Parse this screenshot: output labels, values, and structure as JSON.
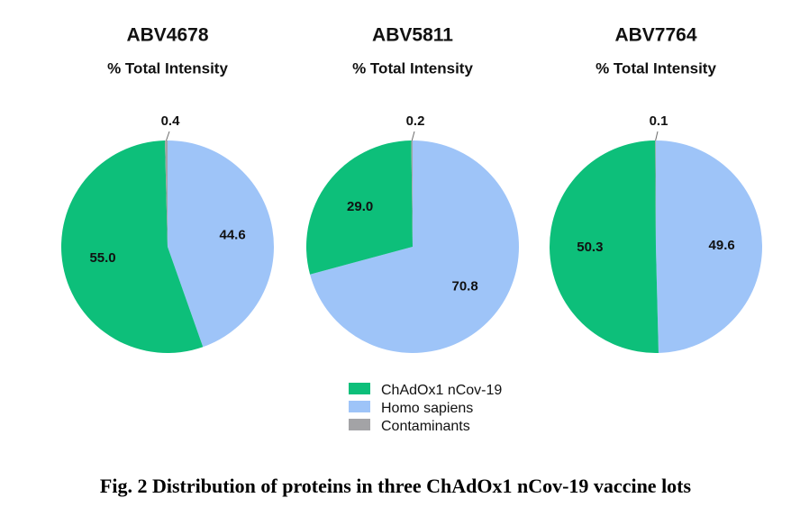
{
  "chart_data": [
    {
      "type": "pie",
      "title": "ABV4678",
      "subtitle": "% Total Intensity",
      "slices": [
        {
          "label": "ChAdOx1 nCov-19",
          "value": 55.0,
          "display": "55.0"
        },
        {
          "label": "Homo sapiens",
          "value": 44.6,
          "display": "44.6"
        },
        {
          "label": "Contaminants",
          "value": 0.4,
          "display": "0.4"
        }
      ]
    },
    {
      "type": "pie",
      "title": "ABV5811",
      "subtitle": "% Total Intensity",
      "slices": [
        {
          "label": "ChAdOx1 nCov-19",
          "value": 29.0,
          "display": "29.0"
        },
        {
          "label": "Homo sapiens",
          "value": 70.8,
          "display": "70.8"
        },
        {
          "label": "Contaminants",
          "value": 0.2,
          "display": "0.2"
        }
      ]
    },
    {
      "type": "pie",
      "title": "ABV7764",
      "subtitle": "% Total Intensity",
      "slices": [
        {
          "label": "ChAdOx1 nCov-19",
          "value": 50.3,
          "display": "50.3"
        },
        {
          "label": "Homo sapiens",
          "value": 49.6,
          "display": "49.6"
        },
        {
          "label": "Contaminants",
          "value": 0.1,
          "display": "0.1"
        }
      ]
    }
  ],
  "legend": {
    "placement": "bottom-center",
    "items": [
      {
        "label": "ChAdOx1 nCov-19",
        "color": "#0dbf7a"
      },
      {
        "label": "Homo sapiens",
        "color": "#9ec4f8"
      },
      {
        "label": "Contaminants",
        "color": "#a3a3a6"
      }
    ]
  },
  "colors": {
    "ChAdOx1 nCov-19": "#0dbf7a",
    "Homo sapiens": "#9ec4f8",
    "Contaminants": "#a3a3a6"
  },
  "caption": "Fig. 2 Distribution of proteins in three ChAdOx1 nCov-19 vaccine lots"
}
